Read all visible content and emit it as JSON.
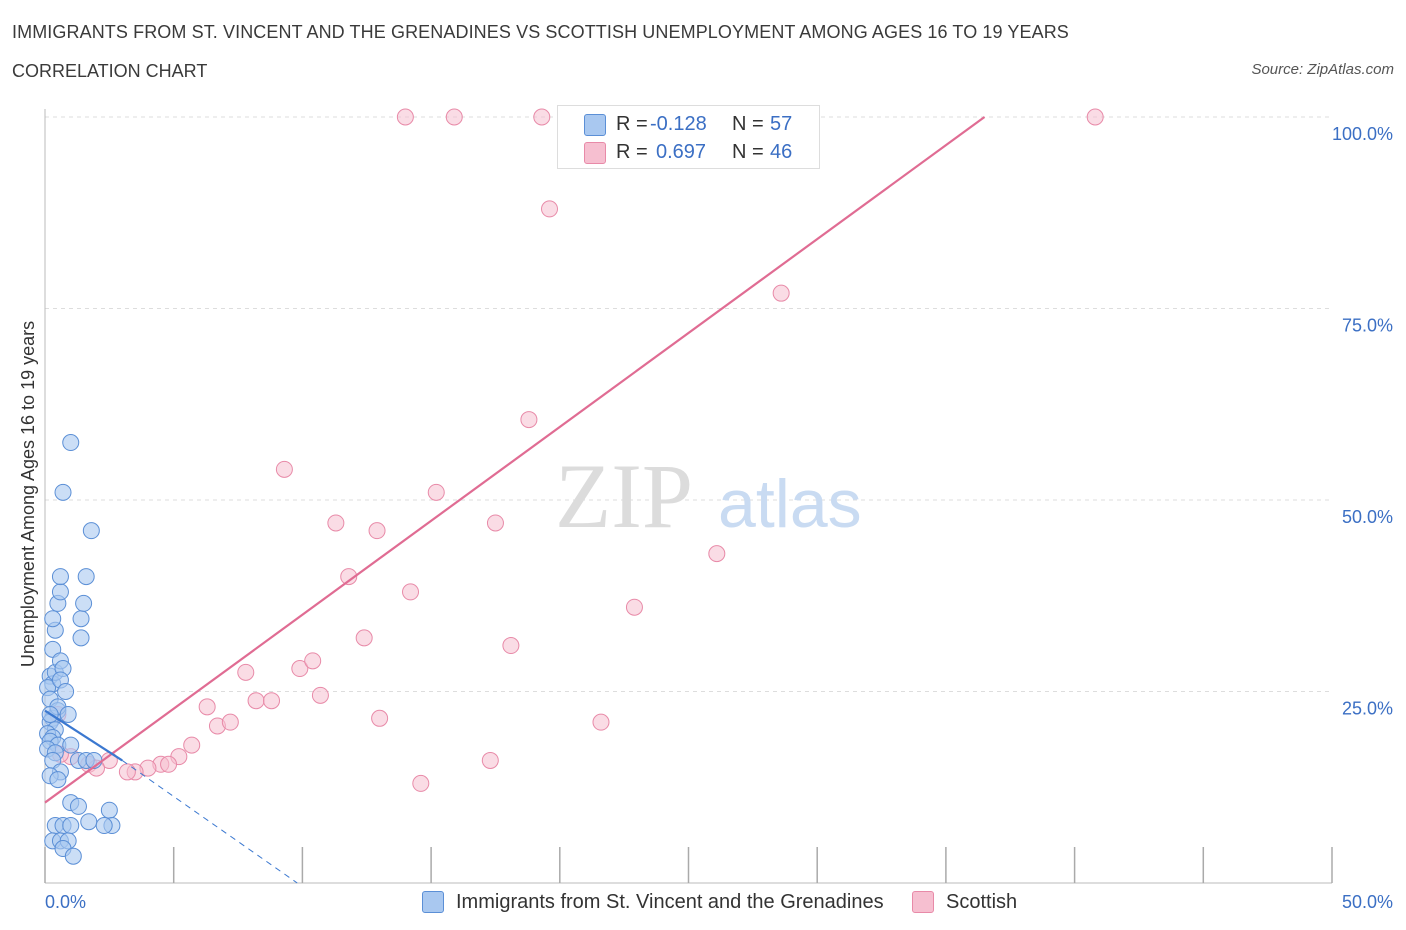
{
  "header": {
    "title": "IMMIGRANTS FROM ST. VINCENT AND THE GRENADINES VS SCOTTISH UNEMPLOYMENT AMONG AGES 16 TO 19 YEARS",
    "subtitle": "CORRELATION CHART",
    "source": "Source: ZipAtlas.com"
  },
  "watermark": {
    "zip": "ZIP",
    "atlas": "atlas"
  },
  "colors": {
    "blue_fill": "#a9c8f0",
    "blue_stroke": "#5b8fd6",
    "blue_line": "#3b78d0",
    "pink_fill": "#f6bfd0",
    "pink_stroke": "#e88aa8",
    "pink_line": "#e06c93",
    "axis_text": "#3b6fc4",
    "grid": "#dddddd"
  },
  "legend": {
    "rows": [
      {
        "r_label": "R =",
        "r_value": "-0.128",
        "n_label": "N =",
        "n_value": "57",
        "color": "#a9c8f0",
        "border": "#5b8fd6"
      },
      {
        "r_label": "R =",
        "r_value": "0.697",
        "n_label": "N =",
        "n_value": "46",
        "color": "#f6bfd0",
        "border": "#e88aa8"
      }
    ]
  },
  "bottom_legend": [
    {
      "label": "Immigrants from St. Vincent and the Grenadines",
      "color": "#a9c8f0",
      "border": "#5b8fd6"
    },
    {
      "label": "Scottish",
      "color": "#f6bfd0",
      "border": "#e88aa8"
    }
  ],
  "chart_data": {
    "type": "scatter",
    "title": "IMMIGRANTS FROM ST. VINCENT AND THE GRENADINES VS SCOTTISH UNEMPLOYMENT AMONG AGES 16 TO 19 YEARS",
    "xlabel": "",
    "ylabel": "Unemployment Among Ages 16 to 19 years",
    "xlim": [
      0,
      50
    ],
    "ylim": [
      0,
      100
    ],
    "x_tick_labels": [
      "0.0%",
      "50.0%"
    ],
    "y_tick_labels": [
      "25.0%",
      "50.0%",
      "75.0%",
      "100.0%"
    ],
    "y_ticks": [
      25,
      50,
      75,
      100
    ],
    "grid": true,
    "legend_position": "top-center",
    "series": [
      {
        "name": "Immigrants from St. Vincent and the Grenadines",
        "r": -0.128,
        "n": 57,
        "trend": {
          "x": [
            0.0,
            3.0
          ],
          "y": [
            22.5,
            16.0
          ]
        },
        "trend_ext": {
          "x": [
            3.0,
            9.8
          ],
          "y": [
            16.0,
            0.0
          ]
        },
        "points": [
          [
            0.2,
            27.0
          ],
          [
            0.3,
            26.0
          ],
          [
            0.1,
            25.5
          ],
          [
            0.4,
            27.5
          ],
          [
            0.2,
            24.0
          ],
          [
            0.5,
            22.5
          ],
          [
            0.3,
            21.5
          ],
          [
            0.2,
            21.0
          ],
          [
            0.4,
            20.0
          ],
          [
            0.1,
            19.5
          ],
          [
            0.3,
            19.0
          ],
          [
            0.2,
            18.5
          ],
          [
            0.5,
            18.0
          ],
          [
            0.1,
            17.5
          ],
          [
            0.4,
            17.0
          ],
          [
            0.3,
            16.0
          ],
          [
            0.6,
            14.5
          ],
          [
            0.2,
            14.0
          ],
          [
            0.5,
            13.5
          ],
          [
            0.3,
            30.5
          ],
          [
            0.4,
            33.0
          ],
          [
            0.3,
            34.5
          ],
          [
            0.5,
            36.5
          ],
          [
            0.6,
            38.0
          ],
          [
            0.6,
            40.0
          ],
          [
            0.6,
            29.0
          ],
          [
            0.7,
            28.0
          ],
          [
            0.7,
            51.0
          ],
          [
            1.0,
            57.5
          ],
          [
            1.4,
            32.0
          ],
          [
            1.4,
            34.5
          ],
          [
            1.5,
            36.5
          ],
          [
            1.6,
            40.0
          ],
          [
            1.8,
            46.0
          ],
          [
            1.0,
            10.5
          ],
          [
            1.3,
            10.0
          ],
          [
            1.7,
            8.0
          ],
          [
            0.4,
            7.5
          ],
          [
            0.7,
            7.5
          ],
          [
            1.0,
            7.5
          ],
          [
            0.3,
            5.5
          ],
          [
            0.6,
            5.5
          ],
          [
            0.9,
            5.5
          ],
          [
            0.7,
            4.5
          ],
          [
            1.1,
            3.5
          ],
          [
            2.5,
            9.5
          ],
          [
            2.6,
            7.5
          ],
          [
            2.3,
            7.5
          ],
          [
            1.3,
            16.0
          ],
          [
            1.6,
            16.0
          ],
          [
            1.9,
            16.0
          ],
          [
            1.0,
            18.0
          ],
          [
            0.6,
            26.5
          ],
          [
            0.8,
            25.0
          ],
          [
            0.5,
            23.0
          ],
          [
            0.2,
            22.0
          ],
          [
            0.9,
            22.0
          ]
        ]
      },
      {
        "name": "Scottish",
        "r": 0.697,
        "n": 46,
        "trend": {
          "x": [
            0.0,
            36.5
          ],
          "y": [
            10.5,
            100.0
          ]
        },
        "points": [
          [
            14.0,
            100.0
          ],
          [
            15.9,
            100.0
          ],
          [
            19.3,
            100.0
          ],
          [
            22.2,
            100.0
          ],
          [
            23.0,
            100.0
          ],
          [
            40.8,
            100.0
          ],
          [
            19.6,
            88.0
          ],
          [
            28.6,
            77.0
          ],
          [
            18.8,
            60.5
          ],
          [
            9.3,
            54.0
          ],
          [
            15.2,
            51.0
          ],
          [
            11.3,
            47.0
          ],
          [
            17.5,
            47.0
          ],
          [
            12.9,
            46.0
          ],
          [
            26.1,
            43.0
          ],
          [
            11.8,
            40.0
          ],
          [
            14.2,
            38.0
          ],
          [
            22.9,
            36.0
          ],
          [
            12.4,
            32.0
          ],
          [
            18.1,
            31.0
          ],
          [
            7.8,
            27.5
          ],
          [
            9.9,
            28.0
          ],
          [
            10.4,
            29.0
          ],
          [
            10.7,
            24.5
          ],
          [
            8.2,
            23.8
          ],
          [
            8.8,
            23.8
          ],
          [
            6.3,
            23.0
          ],
          [
            6.7,
            20.5
          ],
          [
            7.2,
            21.0
          ],
          [
            13.0,
            21.5
          ],
          [
            21.6,
            21.0
          ],
          [
            5.7,
            18.0
          ],
          [
            5.2,
            16.5
          ],
          [
            17.3,
            16.0
          ],
          [
            4.5,
            15.5
          ],
          [
            4.8,
            15.5
          ],
          [
            4.0,
            15.0
          ],
          [
            3.5,
            14.5
          ],
          [
            3.2,
            14.5
          ],
          [
            2.5,
            16.0
          ],
          [
            1.7,
            15.5
          ],
          [
            2.0,
            15.0
          ],
          [
            0.5,
            22.0
          ],
          [
            1.0,
            16.5
          ],
          [
            0.6,
            16.8
          ],
          [
            14.6,
            13.0
          ]
        ]
      }
    ]
  },
  "axes": {
    "ylabel": "Unemployment Among Ages 16 to 19 years",
    "x_min_label": "0.0%",
    "x_max_label": "50.0%"
  }
}
